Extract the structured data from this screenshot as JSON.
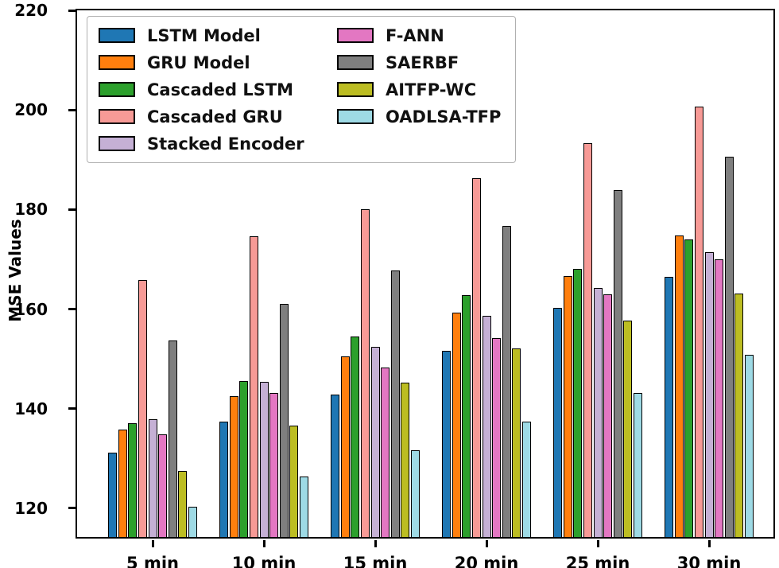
{
  "chart_data": {
    "type": "bar",
    "title": "",
    "xlabel": "",
    "ylabel": "MSE Values",
    "categories": [
      "5 min",
      "10 min",
      "15 min",
      "20 min",
      "25 min",
      "30 min"
    ],
    "yticks": [
      120,
      140,
      160,
      180,
      200,
      220
    ],
    "ylim": [
      114.4,
      220
    ],
    "grid": false,
    "legend_position": "upper-left",
    "bar_edge_color": "#000000",
    "series": [
      {
        "name": "LSTM Model",
        "color": "#1f77b4",
        "values": [
          131.3,
          137.5,
          143.0,
          151.8,
          160.4,
          166.6
        ]
      },
      {
        "name": "GRU Model",
        "color": "#ff7f0e",
        "values": [
          135.9,
          142.6,
          150.6,
          159.5,
          166.8,
          175.0
        ]
      },
      {
        "name": "Cascaded LSTM",
        "color": "#2ca02c",
        "values": [
          137.3,
          145.7,
          154.7,
          162.9,
          168.2,
          174.2
        ]
      },
      {
        "name": "Cascaded GRU",
        "color": "#f79a96",
        "values": [
          166.0,
          174.8,
          180.3,
          186.5,
          193.5,
          200.9
        ]
      },
      {
        "name": "Stacked Encoder",
        "color": "#c5b0d5",
        "values": [
          138.1,
          145.6,
          152.6,
          158.8,
          164.4,
          171.6
        ]
      },
      {
        "name": "F-ANN",
        "color": "#e377c2",
        "values": [
          135.0,
          143.3,
          148.5,
          154.3,
          163.2,
          170.2
        ]
      },
      {
        "name": "SAERBF",
        "color": "#7f7f7f",
        "values": [
          153.8,
          161.2,
          168.0,
          176.8,
          184.0,
          190.8
        ]
      },
      {
        "name": "AITFP-WC",
        "color": "#bcbd22",
        "values": [
          127.6,
          136.8,
          145.4,
          152.3,
          157.9,
          163.3
        ]
      },
      {
        "name": "OADLSA-TFP",
        "color": "#9edae5",
        "values": [
          120.4,
          126.6,
          131.8,
          137.5,
          143.3,
          151.0
        ]
      }
    ],
    "legend_columns": [
      [
        0,
        1,
        2,
        3,
        4
      ],
      [
        5,
        6,
        7,
        8
      ]
    ]
  }
}
